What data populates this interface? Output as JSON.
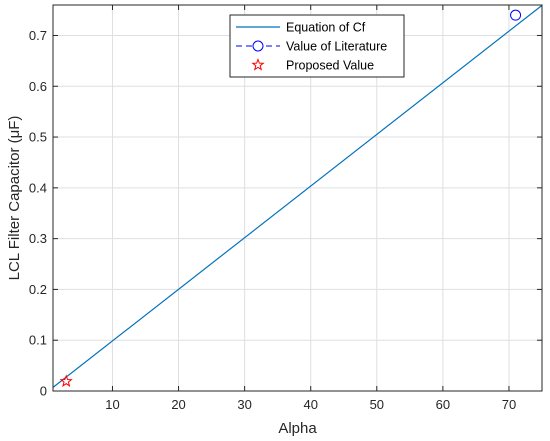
{
  "chart_data": {
    "type": "line",
    "xlabel": "Alpha",
    "ylabel": "LCL  Filter Capacitor (μF)",
    "xlim": [
      1,
      75
    ],
    "ylim": [
      0,
      0.76
    ],
    "xticks": [
      10,
      20,
      30,
      40,
      50,
      60,
      70
    ],
    "xtick_labels": [
      "10",
      "20",
      "30",
      "40",
      "50",
      "60",
      "70"
    ],
    "yticks": [
      0,
      0.1,
      0.2,
      0.3,
      0.4,
      0.5,
      0.6,
      0.7
    ],
    "ytick_labels": [
      "0",
      "0.1",
      "0.2",
      "0.3",
      "0.4",
      "0.5",
      "0.6",
      "0.7"
    ],
    "grid": true,
    "legend_position": "top-center",
    "series": [
      {
        "name": "Equation of Cf",
        "kind": "line",
        "color": "#0072BD",
        "x": [
          1,
          75
        ],
        "y": [
          0.0071,
          0.7593
        ]
      },
      {
        "name": "Value of Literature",
        "kind": "marker-circle",
        "color": "#0000FF",
        "x": [
          71
        ],
        "y": [
          0.74
        ]
      },
      {
        "name": "Proposed Value",
        "kind": "marker-star",
        "color": "#FF0000",
        "x": [
          3
        ],
        "y": [
          0.019
        ]
      }
    ]
  }
}
